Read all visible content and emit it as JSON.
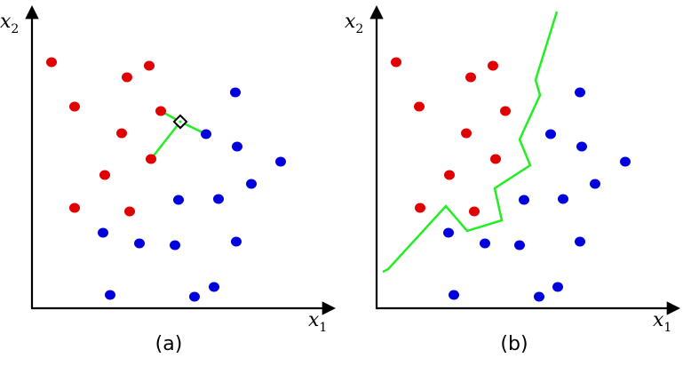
{
  "colors": {
    "red": "#e00000",
    "blue": "#0000dd",
    "green": "#22ee22",
    "axis": "#000000"
  },
  "labels": {
    "x1_base": "x",
    "x1_sub": "1",
    "x2_base": "x",
    "x2_sub": "2"
  },
  "panels": [
    {
      "id": "a",
      "caption": "(a)",
      "red_points": [
        [
          58,
          70
        ],
        [
          143,
          87
        ],
        [
          168,
          74
        ],
        [
          84,
          120
        ],
        [
          181,
          125
        ],
        [
          137,
          150
        ],
        [
          118,
          197
        ],
        [
          84,
          234
        ],
        [
          146,
          238
        ],
        [
          170,
          179
        ]
      ],
      "blue_points": [
        [
          265,
          104
        ],
        [
          232,
          151
        ],
        [
          267,
          165
        ],
        [
          316,
          182
        ],
        [
          283,
          207
        ],
        [
          201,
          225
        ],
        [
          246,
          224
        ],
        [
          116,
          262
        ],
        [
          157,
          274
        ],
        [
          197,
          276
        ],
        [
          266,
          272
        ],
        [
          124,
          332
        ],
        [
          219,
          334
        ],
        [
          241,
          323
        ]
      ],
      "query_point": [
        203,
        137
      ],
      "neighbor_lines": [
        [
          [
            203,
            137
          ],
          [
            181,
            125
          ]
        ],
        [
          [
            203,
            137
          ],
          [
            232,
            151
          ]
        ],
        [
          [
            203,
            137
          ],
          [
            170,
            179
          ]
        ]
      ]
    },
    {
      "id": "b",
      "caption": "(b)",
      "red_points": [
        [
          446,
          70
        ],
        [
          530,
          87
        ],
        [
          555,
          74
        ],
        [
          472,
          120
        ],
        [
          569,
          125
        ],
        [
          525,
          150
        ],
        [
          506,
          197
        ],
        [
          473,
          234
        ],
        [
          534,
          238
        ],
        [
          558,
          179
        ]
      ],
      "blue_points": [
        [
          653,
          104
        ],
        [
          620,
          151
        ],
        [
          655,
          165
        ],
        [
          704,
          182
        ],
        [
          670,
          207
        ],
        [
          590,
          225
        ],
        [
          634,
          224
        ],
        [
          505,
          262
        ],
        [
          546,
          274
        ],
        [
          585,
          276
        ],
        [
          653,
          272
        ],
        [
          511,
          332
        ],
        [
          607,
          334
        ],
        [
          628,
          323
        ]
      ],
      "decision_boundary": [
        [
          431,
          306
        ],
        [
          437,
          303
        ],
        [
          502,
          232
        ],
        [
          526,
          260
        ],
        [
          565,
          248
        ],
        [
          557,
          212
        ],
        [
          597,
          186
        ],
        [
          585,
          157
        ],
        [
          608,
          107
        ],
        [
          603,
          90
        ],
        [
          627,
          13
        ]
      ]
    }
  ]
}
